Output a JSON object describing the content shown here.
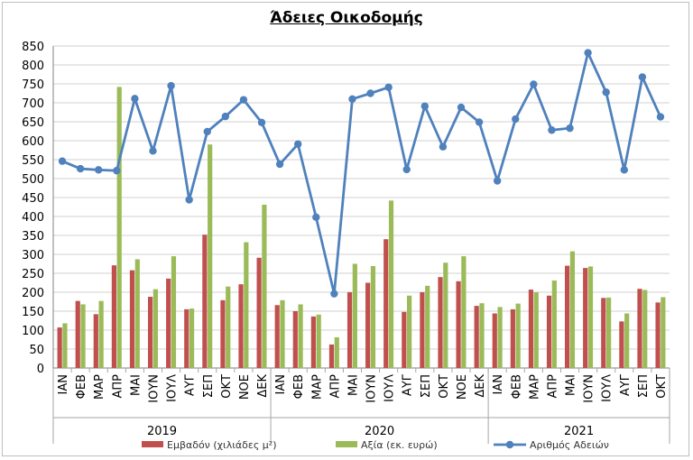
{
  "chart_data": {
    "type": "bar",
    "title": "Άδειες Οικοδομής",
    "ylim": [
      0,
      850
    ],
    "yticks": [
      0,
      50,
      100,
      150,
      200,
      250,
      300,
      350,
      400,
      450,
      500,
      550,
      600,
      650,
      700,
      750,
      800,
      850
    ],
    "grid": true,
    "legend_position": "bottom",
    "groups": [
      {
        "label": "2019",
        "categories": [
          "ΙΑΝ",
          "ΦΕΒ",
          "ΜΑΡ",
          "ΑΠΡ",
          "ΜΑΙ",
          "ΙΟΥΝ",
          "ΙΟΥΛ",
          "ΑΥΓ",
          "ΣΕΠ",
          "ΟΚΤ",
          "ΝΟΕ",
          "ΔΕΚ"
        ]
      },
      {
        "label": "2020",
        "categories": [
          "ΙΑΝ",
          "ΦΕΒ",
          "ΜΑΡ",
          "ΑΠΡ",
          "ΜΑΙ",
          "ΙΟΥΝ",
          "ΙΟΥΛ",
          "ΑΥΓ",
          "ΣΕΠ",
          "ΟΚΤ",
          "ΝΟΕ",
          "ΔΕΚ"
        ]
      },
      {
        "label": "2021",
        "categories": [
          "ΙΑΝ",
          "ΦΕΒ",
          "ΜΑΡ",
          "ΑΠΡ",
          "ΜΑΙ",
          "ΙΟΥΝ",
          "ΙΟΥΛ",
          "ΑΥΓ",
          "ΣΕΠ",
          "ΟΚΤ"
        ]
      }
    ],
    "series": [
      {
        "name": "Εμβαδόν (χιλιάδες μ²)",
        "type": "bar",
        "color": "#c0504d",
        "values": [
          107,
          177,
          142,
          271,
          258,
          188,
          236,
          155,
          352,
          179,
          221,
          291,
          166,
          150,
          136,
          62,
          200,
          225,
          340,
          148,
          200,
          240,
          229,
          164,
          144,
          155,
          207,
          191,
          270,
          264,
          185,
          123,
          209,
          173
        ]
      },
      {
        "name": "Αξία (εκ. ευρώ)",
        "type": "bar",
        "color": "#9bbb59",
        "values": [
          118,
          168,
          177,
          742,
          287,
          208,
          295,
          157,
          590,
          215,
          332,
          431,
          179,
          168,
          141,
          81,
          275,
          269,
          442,
          191,
          217,
          278,
          295,
          171,
          161,
          170,
          200,
          231,
          308,
          268,
          186,
          144,
          206,
          187
        ]
      },
      {
        "name": "Αριθμός Αδειών",
        "type": "line",
        "color": "#4f81bd",
        "values": [
          546,
          526,
          523,
          521,
          711,
          573,
          745,
          444,
          624,
          664,
          708,
          648,
          538,
          591,
          398,
          196,
          710,
          725,
          741,
          524,
          691,
          584,
          688,
          649,
          494,
          657,
          749,
          628,
          633,
          832,
          728,
          523,
          768,
          663
        ]
      }
    ]
  }
}
